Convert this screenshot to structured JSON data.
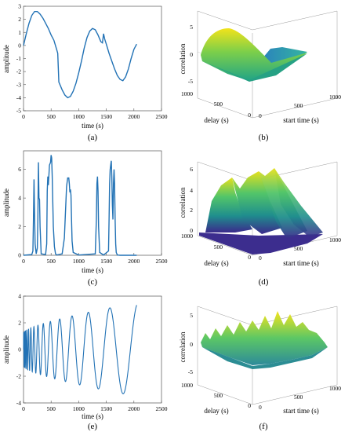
{
  "chart_data": [
    {
      "id": "a",
      "type": "line",
      "caption": "(a)",
      "xlabel": "time (s)",
      "ylabel": "amplitude",
      "xlim": [
        0,
        2500
      ],
      "ylim": [
        -5,
        3
      ],
      "xticks": [
        "0",
        "500",
        "1000",
        "1500",
        "2000",
        "2500"
      ],
      "yticks": [
        "3",
        "2",
        "1",
        "0",
        "-1",
        "-2",
        "-3",
        "-4",
        "-5"
      ],
      "series": [
        {
          "color": "#1f77b4",
          "x": [
            0,
            50,
            100,
            150,
            200,
            250,
            300,
            350,
            400,
            450,
            500,
            550,
            600,
            620,
            640,
            700,
            750,
            800,
            850,
            900,
            950,
            1000,
            1050,
            1100,
            1150,
            1200,
            1250,
            1300,
            1350,
            1400,
            1430,
            1450,
            1470,
            1500,
            1550,
            1600,
            1650,
            1700,
            1750,
            1800,
            1850,
            1900,
            1950,
            2000,
            2050
          ],
          "y": [
            0,
            0.9,
            1.7,
            2.3,
            2.6,
            2.6,
            2.4,
            2.1,
            1.7,
            1.3,
            0.8,
            0.4,
            -0.3,
            -0.6,
            -2.8,
            -3.4,
            -3.8,
            -4.0,
            -3.9,
            -3.5,
            -2.9,
            -2.1,
            -1.2,
            -0.2,
            0.6,
            1.1,
            1.3,
            1.2,
            0.8,
            0.3,
            0.2,
            0.9,
            0.5,
            0.1,
            -0.6,
            -1.2,
            -1.8,
            -2.3,
            -2.6,
            -2.7,
            -2.4,
            -1.8,
            -1.0,
            -0.3,
            0.1
          ]
        }
      ]
    },
    {
      "id": "b",
      "type": "surface",
      "caption": "(b)",
      "zlabel": "correlation",
      "xlabel": "start time (s)",
      "ylabel": "delay (s)",
      "zticks": [
        "5",
        "0",
        "-5"
      ],
      "xticks": [
        "0",
        "500",
        "1000"
      ],
      "yticks": [
        "1000",
        "500",
        "0"
      ]
    },
    {
      "id": "c",
      "type": "line",
      "caption": "(c)",
      "xlabel": "time (s)",
      "ylabel": "amplitude",
      "xlim": [
        0,
        2500
      ],
      "ylim": [
        0,
        7.3
      ],
      "xticks": [
        "0",
        "500",
        "1000",
        "1500",
        "2000",
        "2500"
      ],
      "yticks": [
        "6",
        "4",
        "2",
        "0"
      ],
      "series": [
        {
          "color": "#1f77b4",
          "x": [
            0,
            150,
            170,
            180,
            190,
            200,
            210,
            230,
            250,
            260,
            270,
            280,
            290,
            300,
            320,
            400,
            420,
            430,
            440,
            450,
            470,
            490,
            500,
            510,
            520,
            540,
            560,
            580,
            600,
            700,
            740,
            760,
            780,
            800,
            820,
            830,
            840,
            850,
            860,
            870,
            880,
            900,
            1000,
            1300,
            1320,
            1330,
            1340,
            1350,
            1360,
            1380,
            1450,
            1540,
            1550,
            1560,
            1570,
            1590,
            1600,
            1610,
            1620,
            1630,
            1640,
            1650,
            1660,
            1670,
            1680,
            1700,
            1750,
            2050
          ],
          "y": [
            0,
            0.05,
            0.3,
            2.5,
            5.3,
            3.0,
            0.8,
            0.1,
            0.5,
            2.5,
            6.5,
            4.0,
            3.9,
            2.0,
            0.1,
            0.05,
            0.8,
            4.5,
            5.5,
            4.9,
            6.3,
            6.5,
            7.0,
            6.8,
            5.5,
            2.0,
            0.6,
            0.1,
            0.02,
            0.1,
            1.2,
            3.0,
            4.8,
            5.4,
            5.4,
            5.0,
            4.4,
            4.6,
            4.2,
            2.5,
            1.0,
            0.2,
            0.02,
            0.1,
            2.5,
            5.0,
            5.5,
            4.5,
            2.0,
            0.2,
            0.02,
            0.3,
            2.5,
            5.0,
            6.0,
            6.6,
            5.5,
            3.5,
            2.5,
            5.0,
            6.0,
            5.0,
            2.5,
            0.8,
            0.2,
            0.02,
            0,
            0
          ]
        }
      ]
    },
    {
      "id": "d",
      "type": "surface",
      "caption": "(d)",
      "zlabel": "correlation",
      "xlabel": "start time (s)",
      "ylabel": "delay (s)",
      "zticks": [
        "6",
        "4",
        "2",
        "0"
      ],
      "xticks": [
        "0",
        "500",
        "1000"
      ],
      "yticks": [
        "1000",
        "500",
        "0"
      ]
    },
    {
      "id": "e",
      "type": "line",
      "caption": "(e)",
      "xlabel": "time (s)",
      "ylabel": "amplitude",
      "xlim": [
        0,
        2500
      ],
      "ylim": [
        -4,
        4
      ],
      "xticks": [
        "0",
        "500",
        "1000",
        "1500",
        "2000",
        "2500"
      ],
      "yticks": [
        "4",
        "2",
        "0",
        "-2",
        "-4"
      ],
      "series": [
        {
          "color": "#1f77b4",
          "chirp": {
            "t_max": 2050,
            "amp_start": 1.3,
            "amp_end": 3.5,
            "phase_note": "frequency decreasing with time"
          }
        }
      ]
    },
    {
      "id": "f",
      "type": "surface",
      "caption": "(f)",
      "zlabel": "correlation",
      "xlabel": "start time (s)",
      "ylabel": "delay (s)",
      "zticks": [
        "5",
        "0",
        "-5"
      ],
      "xticks": [
        "0",
        "500",
        "1000"
      ],
      "yticks": [
        "1000",
        "500",
        "0"
      ]
    }
  ]
}
